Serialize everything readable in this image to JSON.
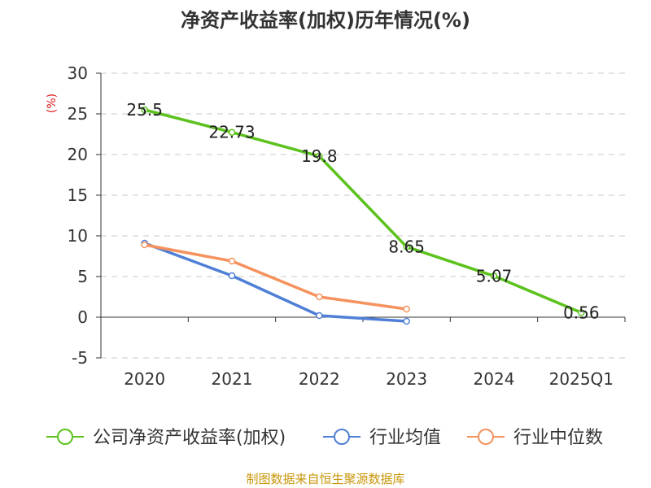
{
  "chart_data": {
    "type": "line",
    "title": "净资产收益率(加权)历年情况(%)",
    "ylabel": "(%)",
    "categories": [
      "2020",
      "2021",
      "2022",
      "2023",
      "2024",
      "2025Q1"
    ],
    "ylim": [
      -5,
      30
    ],
    "yticks": [
      30,
      25,
      20,
      15,
      10,
      5,
      0,
      -5
    ],
    "grid": true,
    "legend_position": "bottom",
    "series": [
      {
        "name": "公司净资产收益率(加权)",
        "color": "#5cc21d",
        "values": [
          25.5,
          22.73,
          19.8,
          8.65,
          5.07,
          0.56
        ],
        "labels": [
          "25.5",
          "22.73",
          "19.8",
          "8.65",
          "5.07",
          "0.56"
        ]
      },
      {
        "name": "行业均值",
        "color": "#4f7fd6",
        "values": [
          9.1,
          5.1,
          0.2,
          -0.5,
          null,
          null
        ]
      },
      {
        "name": "行业中位数",
        "color": "#f5925e",
        "values": [
          8.9,
          6.9,
          2.5,
          1.0,
          null,
          null
        ]
      }
    ],
    "source": "制图数据来自恒生聚源数据库",
    "source_color": "#c8960a",
    "unit_color": "#e01818"
  }
}
